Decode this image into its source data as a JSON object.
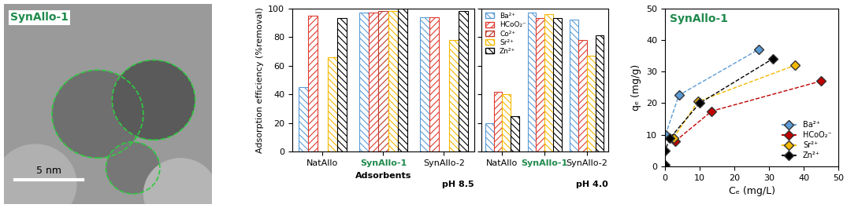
{
  "chart_data": [
    {
      "type": "image",
      "title": "SynAllo-1",
      "annotations": [
        "5 nm"
      ]
    },
    {
      "type": "bar",
      "y_label": "Adsorption efficiency (%removal)",
      "x_label": "Adsorbents",
      "annotations": [
        "pH 8.5"
      ],
      "categories": [
        "NatAllo",
        "SynAllo-1",
        "SynAllo-2"
      ],
      "series": [
        {
          "name": "Ba²⁺",
          "color": "#5b9bd5",
          "values": [
            45,
            97,
            94
          ]
        },
        {
          "name": "HCoO₂⁻",
          "color": "#e03c31",
          "values": [
            95,
            97,
            94
          ]
        },
        {
          "name": "Co²⁺",
          "color": "#c0392b",
          "values": [
            null,
            98,
            null
          ]
        },
        {
          "name": "Sr²⁺",
          "color": "#f5b800",
          "values": [
            66,
            98,
            78
          ]
        },
        {
          "name": "Zn²⁺",
          "color": "#000000",
          "values": [
            93,
            100,
            98
          ]
        }
      ],
      "ylim": [
        0,
        100
      ],
      "yticks": [
        0,
        20,
        40,
        60,
        80,
        100
      ]
    },
    {
      "type": "bar",
      "annotations": [
        "pH 4.0"
      ],
      "categories": [
        "NatAllo",
        "SynAllo-1",
        "SynAllo-2"
      ],
      "series": [
        {
          "name": "Ba²⁺",
          "color": "#5b9bd5",
          "values": [
            20,
            97,
            92
          ]
        },
        {
          "name": "HCoO₂⁻",
          "color": "#e03c31",
          "values": [
            42,
            93,
            78
          ]
        },
        {
          "name": "Co²⁺",
          "color": "#c0392b",
          "values": [
            null,
            null,
            null
          ]
        },
        {
          "name": "Sr²⁺",
          "color": "#f5b800",
          "values": [
            40,
            96,
            67
          ]
        },
        {
          "name": "Zn²⁺",
          "color": "#000000",
          "values": [
            25,
            93,
            81
          ]
        }
      ],
      "ylim": [
        0,
        100
      ],
      "yticks": [
        0,
        20,
        40,
        60,
        80,
        100
      ],
      "tick_labels": "x",
      "legend": "upper left"
    },
    {
      "type": "scatter",
      "title": "SynAllo-1",
      "x_label": "Cₑ (mg/L)",
      "y_label": "qₑ (mg/g)",
      "series": [
        {
          "name": "Ba²⁺",
          "color": "#5b9bd5",
          "x": [
            0.2,
            4,
            27
          ],
          "values": [
            10,
            22.5,
            37
          ]
        },
        {
          "name": "HCoO₂⁻",
          "color": "#c00000",
          "x": [
            3,
            13.5,
            45
          ],
          "values": [
            8,
            17.5,
            27
          ]
        },
        {
          "name": "Sr²⁺",
          "color": "#f5b800",
          "x": [
            2.5,
            9.5,
            37.5
          ],
          "values": [
            9,
            20.5,
            32
          ]
        },
        {
          "name": "Zn²⁺",
          "color": "#000000",
          "x": [
            0,
            0,
            1.5,
            10,
            31
          ],
          "values": [
            0.5,
            5,
            9,
            20,
            34
          ]
        }
      ],
      "marker": "D",
      "line_style": "dashed",
      "xlim": [
        0,
        50
      ],
      "xticks": [
        0,
        10,
        20,
        30,
        40,
        50
      ],
      "ylim": [
        0,
        50
      ],
      "yticks": [
        0,
        10,
        20,
        30,
        40,
        50
      ],
      "legend": "lower right"
    }
  ]
}
